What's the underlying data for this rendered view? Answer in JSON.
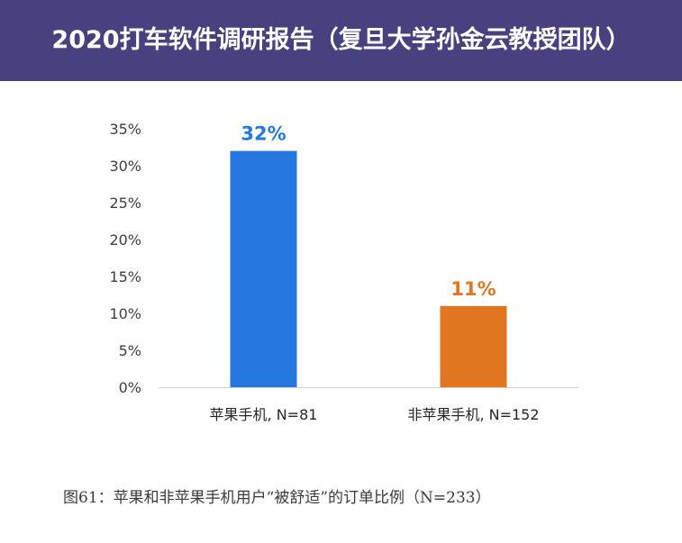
{
  "header": {
    "title": "2020打车软件调研报告（复旦大学孙金云教授团队）"
  },
  "chart_data": {
    "type": "bar",
    "categories": [
      "苹果手机, N=81",
      "非苹果手机, N=152"
    ],
    "values": [
      32,
      11
    ],
    "value_labels": [
      "32%",
      "11%"
    ],
    "colors": [
      "#2478df",
      "#e07620"
    ],
    "ylim": [
      0,
      35
    ],
    "yticks": [
      0,
      5,
      10,
      15,
      20,
      25,
      30,
      35
    ],
    "ytick_labels": [
      "0%",
      "5%",
      "10%",
      "15%",
      "20%",
      "25%",
      "30%",
      "35%"
    ],
    "grid": false,
    "title": "",
    "xlabel": "",
    "ylabel": ""
  },
  "caption": "图61：苹果和非苹果手机用户“被舒适”的订单比例（N=233）"
}
